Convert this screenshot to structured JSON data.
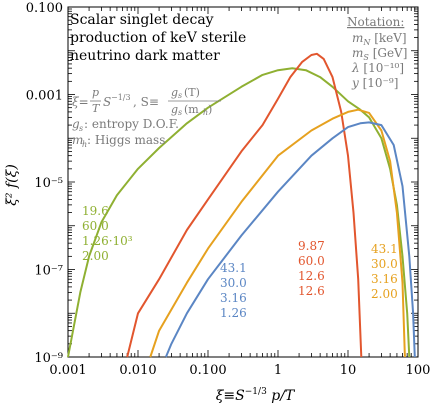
{
  "chart_data": {
    "type": "line",
    "x_scale": "log",
    "y_scale": "log",
    "xlim": [
      0.001,
      100
    ],
    "ylim": [
      1e-09,
      0.1
    ],
    "xlabel": "ξ≡S^{-1/3} p/T",
    "ylabel": "ξ² f(ξ)",
    "x_tick_labels": [
      "0.001",
      "0.010",
      "0.100",
      "1",
      "10",
      "100"
    ],
    "y_tick_labels": [
      "10⁻⁹",
      "10⁻⁷",
      "10⁻⁵",
      "0.001",
      "0.100"
    ],
    "grid": false,
    "title_lines": [
      "Scalar singlet decay",
      "production of keV sterile",
      "neutrino dark matter"
    ],
    "definitions": {
      "xi_def_left": "ξ=",
      "xi_num": "p",
      "xi_den": "T",
      "xi_mid": "S",
      "xi_sup": "−1/3",
      "s_def": ", S≡",
      "s_num": "g",
      "s_num_sub": "s",
      "s_num_tail": "(T)",
      "s_den": "g",
      "s_den_sub": "s",
      "s_den_tail": "(m",
      "s_den_sub2": "h",
      "s_den_close": ")",
      "gs_line_var": "g",
      "gs_line_sub": "s",
      "gs_line_text": ": entropy D.O.F.",
      "mh_line_var": "m",
      "mh_line_sub": "h",
      "mh_line_text": ": Higgs mass"
    },
    "notation": {
      "title": "Notation:",
      "rows": [
        {
          "var": "m",
          "sub": "N",
          "unit": " [keV]"
        },
        {
          "var": "m",
          "sub": "S",
          "unit": " [GeV]"
        },
        {
          "var": "λ",
          "sub": "",
          "unit": " [10⁻¹⁰]"
        },
        {
          "var": "y",
          "sub": "",
          "unit": " [10⁻⁹]"
        }
      ]
    },
    "colors": {
      "green": "#8fb032",
      "red": "#e2562e",
      "orange": "#e6a11f",
      "blue": "#5b86c4",
      "gray": "#7a7a7a"
    },
    "series": [
      {
        "key": "green",
        "params": [
          "19.6",
          "60.0",
          "1.26·10³",
          "2.00"
        ],
        "points": [
          [
            0.001,
            1e-09
          ],
          [
            0.0015,
            3e-08
          ],
          [
            0.002,
            2e-07
          ],
          [
            0.003,
            1.2e-06
          ],
          [
            0.005,
            5e-06
          ],
          [
            0.01,
            2e-05
          ],
          [
            0.02,
            6e-05
          ],
          [
            0.05,
            0.00022
          ],
          [
            0.1,
            0.0005
          ],
          [
            0.3,
            0.0015
          ],
          [
            0.6,
            0.0028
          ],
          [
            1,
            0.0036
          ],
          [
            1.6,
            0.004
          ],
          [
            2.5,
            0.0036
          ],
          [
            4,
            0.0025
          ],
          [
            6,
            0.0015
          ],
          [
            10,
            0.0007
          ],
          [
            15,
            0.00045
          ],
          [
            20,
            0.0003
          ],
          [
            30,
            0.0001
          ],
          [
            40,
            2e-05
          ],
          [
            50,
            3e-06
          ],
          [
            60,
            2e-07
          ],
          [
            70,
            1e-08
          ],
          [
            75,
            1e-09
          ]
        ]
      },
      {
        "key": "red",
        "params": [
          "9.87",
          "60.0",
          "12.6",
          "12.6"
        ],
        "points": [
          [
            0.007,
            1e-09
          ],
          [
            0.01,
            1e-08
          ],
          [
            0.02,
            6e-08
          ],
          [
            0.05,
            8e-07
          ],
          [
            0.1,
            4e-06
          ],
          [
            0.3,
            5e-05
          ],
          [
            0.6,
            0.0002
          ],
          [
            1,
            0.0008
          ],
          [
            1.5,
            0.0025
          ],
          [
            2.2,
            0.0055
          ],
          [
            3,
            0.008
          ],
          [
            3.6,
            0.0085
          ],
          [
            4.5,
            0.0065
          ],
          [
            6,
            0.0025
          ],
          [
            8,
            0.0004
          ],
          [
            10,
            4e-05
          ],
          [
            12,
            2e-06
          ],
          [
            14,
            6e-08
          ],
          [
            15.5,
            1e-09
          ]
        ]
      },
      {
        "key": "orange",
        "params": [
          "43.1",
          "30.0",
          "3.16",
          "2.00"
        ],
        "points": [
          [
            0.015,
            1e-09
          ],
          [
            0.02,
            4e-09
          ],
          [
            0.05,
            5e-08
          ],
          [
            0.1,
            3e-07
          ],
          [
            0.3,
            3.5e-06
          ],
          [
            1,
            4e-05
          ],
          [
            3,
            0.00015
          ],
          [
            6,
            0.00028
          ],
          [
            10,
            0.0004
          ],
          [
            14,
            0.00045
          ],
          [
            20,
            0.00038
          ],
          [
            30,
            0.00015
          ],
          [
            40,
            3e-05
          ],
          [
            50,
            2e-06
          ],
          [
            60,
            5e-08
          ],
          [
            65,
            1e-09
          ]
        ]
      },
      {
        "key": "blue",
        "params": [
          "43.1",
          "30.0",
          "3.16",
          "1.26"
        ],
        "points": [
          [
            0.025,
            1e-09
          ],
          [
            0.03,
            2e-09
          ],
          [
            0.05,
            1e-08
          ],
          [
            0.1,
            6e-08
          ],
          [
            0.3,
            6e-07
          ],
          [
            1,
            6e-06
          ],
          [
            3,
            4e-05
          ],
          [
            6,
            0.0001
          ],
          [
            10,
            0.00018
          ],
          [
            15,
            0.00022
          ],
          [
            20,
            0.00023
          ],
          [
            30,
            0.0002
          ],
          [
            45,
            7e-05
          ],
          [
            60,
            8e-06
          ],
          [
            75,
            2e-07
          ],
          [
            85,
            1e-08
          ],
          [
            90,
            1e-09
          ]
        ]
      }
    ]
  }
}
